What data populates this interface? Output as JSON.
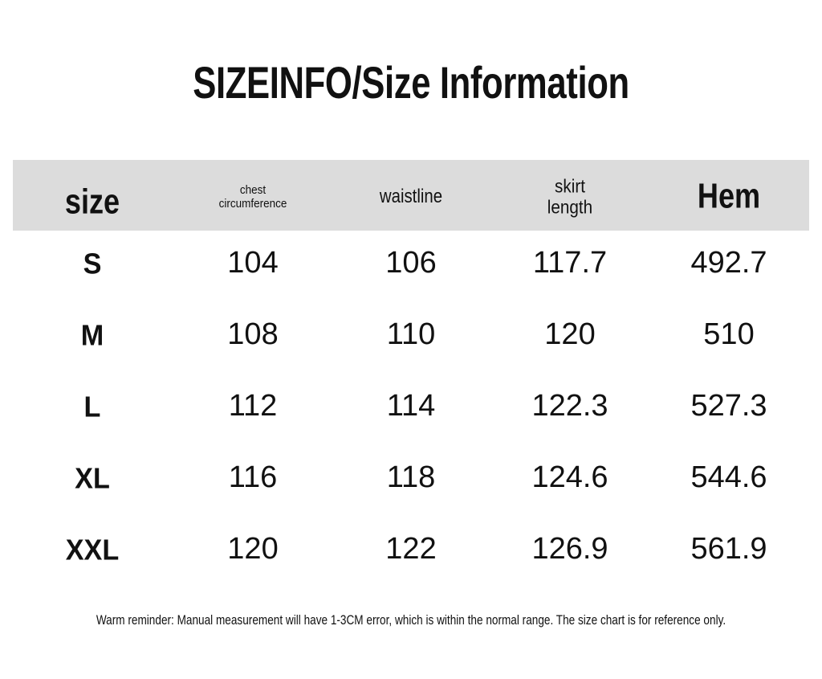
{
  "title": "SIZEINFO/Size Information",
  "table": {
    "header": [
      "size",
      "chest circumference",
      "waistline",
      "skirt length",
      "Hem"
    ],
    "rows": [
      [
        "S",
        "104",
        "106",
        "117.7",
        "492.7"
      ],
      [
        "M",
        "108",
        "110",
        "120",
        "510"
      ],
      [
        "L",
        "112",
        "114",
        "122.3",
        "527.3"
      ],
      [
        "XL",
        "116",
        "118",
        "124.6",
        "544.6"
      ],
      [
        "XXL",
        "120",
        "122",
        "126.9",
        "561.9"
      ]
    ]
  },
  "note": "Warm reminder: Manual measurement will have 1-3CM error, which is within the normal range. The size chart is for reference only."
}
